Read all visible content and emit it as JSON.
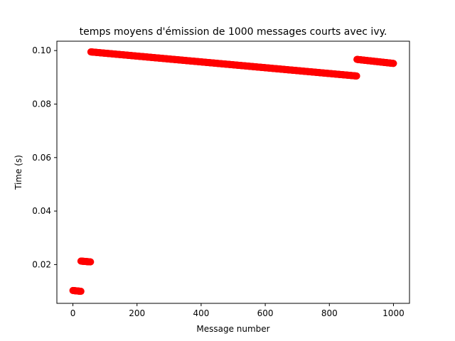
{
  "chart_data": {
    "type": "scatter",
    "title": "temps moyens d'émission de 1000 messages courts avec ivy.",
    "xlabel": "Message number",
    "ylabel": "Time (s)",
    "xlim": [
      -50,
      1050
    ],
    "ylim": [
      0.0055,
      0.1035
    ],
    "xticks": [
      0,
      200,
      400,
      600,
      800,
      1000
    ],
    "yticks": [
      0.02,
      0.04,
      0.06,
      0.08,
      0.1
    ],
    "xtick_labels": [
      "0",
      "200",
      "400",
      "600",
      "800",
      "1000"
    ],
    "ytick_labels": [
      "0.02",
      "0.04",
      "0.06",
      "0.08",
      "0.10"
    ],
    "grid": false,
    "marker_color": "#ff0000",
    "series": [
      {
        "segments": [
          {
            "x_start": 0,
            "x_end": 25,
            "y_start": 0.0103,
            "y_end": 0.01
          },
          {
            "x_start": 25,
            "x_end": 55,
            "y_start": 0.0213,
            "y_end": 0.021
          },
          {
            "x_start": 56,
            "x_end": 885,
            "y_start": 0.0995,
            "y_end": 0.0905
          },
          {
            "x_start": 886,
            "x_end": 1000,
            "y_start": 0.0967,
            "y_end": 0.0952
          }
        ]
      }
    ]
  }
}
